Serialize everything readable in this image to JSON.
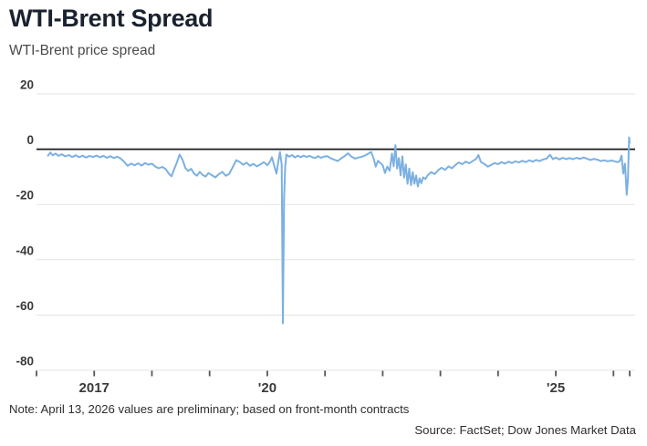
{
  "header": {
    "title": "WTI-Brent Spread",
    "subtitle": "WTI-Brent price spread"
  },
  "footer": {
    "note": "Note: April 13, 2026 values are preliminary; based on front-month contracts",
    "source": "Source: FactSet; Dow Jones Market Data"
  },
  "colors": {
    "line": "#7cb0e1",
    "grid": "#e3e3e3",
    "zero_line": "#17191c",
    "tick": "#555555",
    "axis_label": "#3a3a3a",
    "title": "#19222e"
  },
  "chart_data": {
    "type": "line",
    "title": "WTI-Brent Spread",
    "subtitle": "WTI-Brent price spread",
    "xlabel": "",
    "ylabel": "",
    "xlim": [
      2016.0,
      2026.375
    ],
    "ylim": [
      -80,
      20
    ],
    "grid": true,
    "legend": false,
    "y_ticks": [
      20,
      0,
      -20,
      -40,
      -60,
      -80
    ],
    "x_ticks": [
      2016,
      2017,
      2018,
      2019,
      2020,
      2021,
      2022,
      2023,
      2024,
      2025,
      2026
    ],
    "x_tick_labels": {
      "2017": "2017",
      "2020": "'20",
      "2025": "'25"
    },
    "zero_line_at": 0,
    "series": [
      {
        "name": "WTI-Brent price spread",
        "x": [
          2016.2,
          2016.24,
          2016.28,
          2016.33,
          2016.38,
          2016.44,
          2016.5,
          2016.56,
          2016.62,
          2016.68,
          2016.74,
          2016.8,
          2016.86,
          2016.92,
          2016.98,
          2017.04,
          2017.1,
          2017.16,
          2017.22,
          2017.28,
          2017.34,
          2017.4,
          2017.46,
          2017.52,
          2017.58,
          2017.64,
          2017.7,
          2017.76,
          2017.82,
          2017.88,
          2017.94,
          2018.0,
          2018.06,
          2018.12,
          2018.18,
          2018.24,
          2018.3,
          2018.34,
          2018.38,
          2018.43,
          2018.48,
          2018.53,
          2018.58,
          2018.63,
          2018.68,
          2018.73,
          2018.78,
          2018.83,
          2018.88,
          2018.93,
          2018.98,
          2019.04,
          2019.1,
          2019.16,
          2019.22,
          2019.28,
          2019.34,
          2019.4,
          2019.46,
          2019.52,
          2019.58,
          2019.64,
          2019.7,
          2019.76,
          2019.82,
          2019.88,
          2019.94,
          2020.0,
          2020.05,
          2020.08,
          2020.12,
          2020.16,
          2020.19,
          2020.22,
          2020.25,
          2020.27,
          2020.29,
          2020.31,
          2020.33,
          2020.38,
          2020.43,
          2020.48,
          2020.53,
          2020.58,
          2020.63,
          2020.68,
          2020.73,
          2020.78,
          2020.83,
          2020.88,
          2020.93,
          2020.98,
          2021.04,
          2021.1,
          2021.16,
          2021.22,
          2021.28,
          2021.34,
          2021.4,
          2021.46,
          2021.52,
          2021.58,
          2021.64,
          2021.7,
          2021.76,
          2021.8,
          2021.84,
          2021.88,
          2021.92,
          2021.96,
          2022.0,
          2022.04,
          2022.08,
          2022.12,
          2022.16,
          2022.19,
          2022.22,
          2022.25,
          2022.28,
          2022.31,
          2022.34,
          2022.37,
          2022.4,
          2022.43,
          2022.46,
          2022.49,
          2022.52,
          2022.55,
          2022.58,
          2022.61,
          2022.64,
          2022.67,
          2022.7,
          2022.74,
          2022.78,
          2022.84,
          2022.9,
          2022.96,
          2023.02,
          2023.08,
          2023.14,
          2023.2,
          2023.26,
          2023.32,
          2023.38,
          2023.44,
          2023.5,
          2023.56,
          2023.62,
          2023.66,
          2023.7,
          2023.76,
          2023.82,
          2023.88,
          2023.94,
          2024.0,
          2024.06,
          2024.12,
          2024.18,
          2024.24,
          2024.3,
          2024.36,
          2024.42,
          2024.48,
          2024.54,
          2024.6,
          2024.66,
          2024.72,
          2024.78,
          2024.84,
          2024.9,
          2024.95,
          2025.0,
          2025.06,
          2025.12,
          2025.18,
          2025.24,
          2025.3,
          2025.36,
          2025.42,
          2025.48,
          2025.54,
          2025.6,
          2025.66,
          2025.72,
          2025.78,
          2025.84,
          2025.9,
          2025.96,
          2026.02,
          2026.07,
          2026.11,
          2026.14,
          2026.17,
          2026.2,
          2026.23,
          2026.25,
          2026.27,
          2026.28
        ],
        "y": [
          -2.3,
          -1.2,
          -2.2,
          -1.6,
          -2.4,
          -1.8,
          -2.6,
          -2.1,
          -2.8,
          -2.2,
          -2.9,
          -2.3,
          -3.0,
          -2.4,
          -2.8,
          -2.3,
          -2.9,
          -2.4,
          -3.1,
          -2.5,
          -3.2,
          -2.7,
          -3.4,
          -4.6,
          -6.0,
          -5.2,
          -5.8,
          -5.1,
          -5.9,
          -5.0,
          -5.6,
          -5.2,
          -6.3,
          -6.9,
          -6.4,
          -7.2,
          -9.0,
          -9.8,
          -7.5,
          -5.0,
          -1.9,
          -3.8,
          -6.8,
          -7.9,
          -7.1,
          -8.8,
          -9.6,
          -8.2,
          -9.3,
          -9.9,
          -8.6,
          -9.4,
          -10.2,
          -9.0,
          -8.2,
          -9.6,
          -8.9,
          -6.5,
          -4.0,
          -4.6,
          -5.6,
          -4.9,
          -6.0,
          -5.3,
          -6.2,
          -5.5,
          -4.7,
          -5.8,
          -4.4,
          -2.9,
          -6.0,
          -8.8,
          -4.6,
          -1.0,
          -5.5,
          -63.0,
          -18.0,
          -6.5,
          -1.9,
          -2.7,
          -2.1,
          -3.0,
          -2.3,
          -2.9,
          -2.3,
          -2.8,
          -2.4,
          -2.9,
          -3.2,
          -2.5,
          -3.1,
          -2.7,
          -2.5,
          -3.3,
          -3.8,
          -4.3,
          -3.3,
          -2.5,
          -1.5,
          -2.7,
          -3.4,
          -3.0,
          -2.7,
          -2.2,
          -1.5,
          -1.0,
          -3.2,
          -6.3,
          -4.2,
          -5.0,
          -5.8,
          -8.6,
          -6.3,
          -7.8,
          -1.6,
          -6.2,
          1.5,
          -7.0,
          -3.2,
          -9.5,
          -2.6,
          -10.3,
          -5.5,
          -12.5,
          -7.0,
          -13.0,
          -8.3,
          -12.5,
          -9.5,
          -13.5,
          -10.5,
          -12.3,
          -10.2,
          -10.8,
          -9.4,
          -8.3,
          -9.0,
          -7.6,
          -6.7,
          -7.5,
          -6.2,
          -6.9,
          -5.7,
          -4.8,
          -5.4,
          -4.5,
          -5.1,
          -4.3,
          -3.5,
          -2.1,
          -4.6,
          -5.3,
          -6.3,
          -5.7,
          -5.0,
          -5.4,
          -4.7,
          -5.2,
          -4.5,
          -5.0,
          -4.4,
          -4.8,
          -4.2,
          -4.7,
          -4.0,
          -4.5,
          -3.9,
          -4.3,
          -3.7,
          -3.4,
          -2.0,
          -3.6,
          -3.0,
          -3.7,
          -3.1,
          -3.6,
          -3.2,
          -3.6,
          -3.1,
          -3.5,
          -3.0,
          -3.4,
          -3.9,
          -3.5,
          -3.8,
          -4.3,
          -4.0,
          -4.4,
          -4.1,
          -4.4,
          -4.7,
          -4.3,
          -2.3,
          -8.8,
          -5.2,
          -16.5,
          -11.0,
          4.3,
          2.3
        ]
      }
    ]
  }
}
